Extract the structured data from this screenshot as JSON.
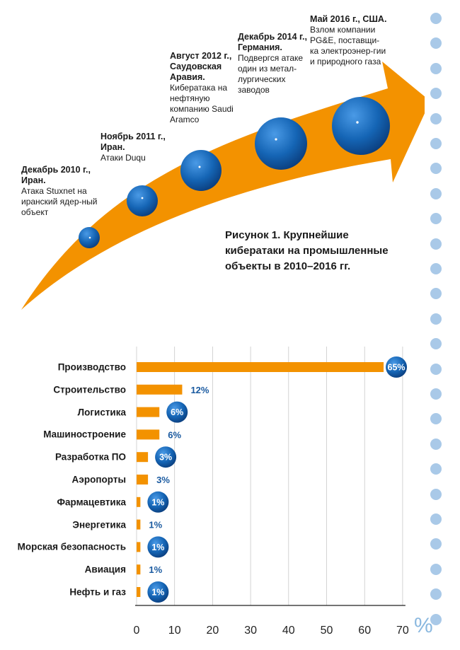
{
  "timeline": {
    "events": [
      {
        "head": "Декабрь 2010 г., Иран.",
        "text": "Атака Stuxnet на иранский ядер-ный объект"
      },
      {
        "head": "Ноябрь 2011 г., Иран.",
        "text": "Атаки Duqu"
      },
      {
        "head": "Август 2012 г., Саудовская Аравия.",
        "text": "Кибератака на нефтяную компанию Saudi Aramco"
      },
      {
        "head": "Декабрь 2014 г., Германия.",
        "text": "Подвергся атаке один из метал-лургических заводов"
      },
      {
        "head": "Май 2016 г., США.",
        "text": "Взлом компании PG&E, поставщи-ка электроэнер-гии и природного газа"
      }
    ],
    "figure_title": "Рисунок 1. Крупнейшие кибератаки на промышленные объекты в 2010–2016 гг.",
    "arrow_color": "#f39200",
    "sphere_color": "#1565b5"
  },
  "chart_data": {
    "type": "bar",
    "orientation": "horizontal",
    "categories": [
      "Производство",
      "Строительство",
      "Логистика",
      "Машиностроение",
      "Разработка ПО",
      "Аэропорты",
      "Фармацевтика",
      "Энергетика",
      "Морская безопасность",
      "Авиация",
      "Нефть и газ"
    ],
    "values": [
      65,
      12,
      6,
      6,
      3,
      3,
      1,
      1,
      1,
      1,
      1
    ],
    "labels": [
      "65%",
      "12%",
      "6%",
      "6%",
      "3%",
      "3%",
      "1%",
      "1%",
      "1%",
      "1%",
      "1%"
    ],
    "badge": [
      true,
      false,
      true,
      false,
      true,
      false,
      true,
      false,
      true,
      false,
      true
    ],
    "xlim": [
      0,
      70
    ],
    "xticks": [
      "0",
      "10",
      "20",
      "30",
      "40",
      "50",
      "60",
      "70"
    ],
    "unit_label": "%",
    "grid": true,
    "bar_color": "#f39200",
    "badge_color": "#1565b5",
    "label_color": "#1a5aa0"
  }
}
